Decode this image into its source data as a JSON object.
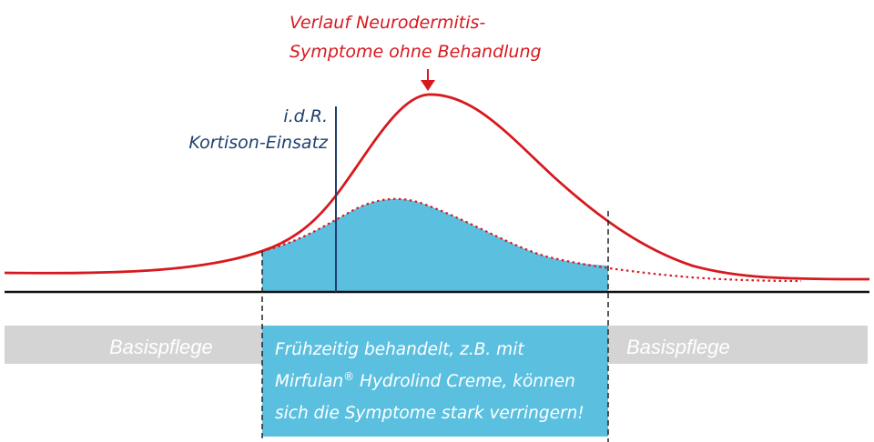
{
  "colors": {
    "red": "#d7191f",
    "navy": "#1f3f6e",
    "blue_fill": "#5bc0e0",
    "band_gray": "#d4d4d4",
    "band_text": "#ffffff",
    "box_text": "#ffffff",
    "baseline": "#111111"
  },
  "labels": {
    "red_line1": "Verlauf Neurodermitis-",
    "red_line2": "Symptome ohne Behandlung",
    "blue_line1": "i.d.R.",
    "blue_line2": "Kortison-Einsatz",
    "basis_left": "Basispflege",
    "basis_right": "Basispflege",
    "box_line1": "Frühzeitig behandelt, z.B. mit",
    "box_line2_a": "Mirfulan",
    "box_line2_reg": "®",
    "box_line2_b": " Hydrolind Creme, können",
    "box_line3": "sich die Symptome stark verringern!"
  }
}
